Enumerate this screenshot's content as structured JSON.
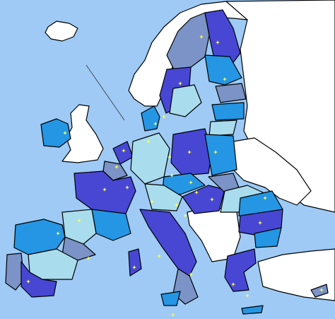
{
  "map": {
    "sea": "#9ecaf5",
    "land": "#ffffff",
    "dark": "#4747d4",
    "steel": "#7b93c6",
    "medium": "#2496e4",
    "light": "#a9dcec",
    "star": "#ffff55",
    "border": "#000000"
  }
}
